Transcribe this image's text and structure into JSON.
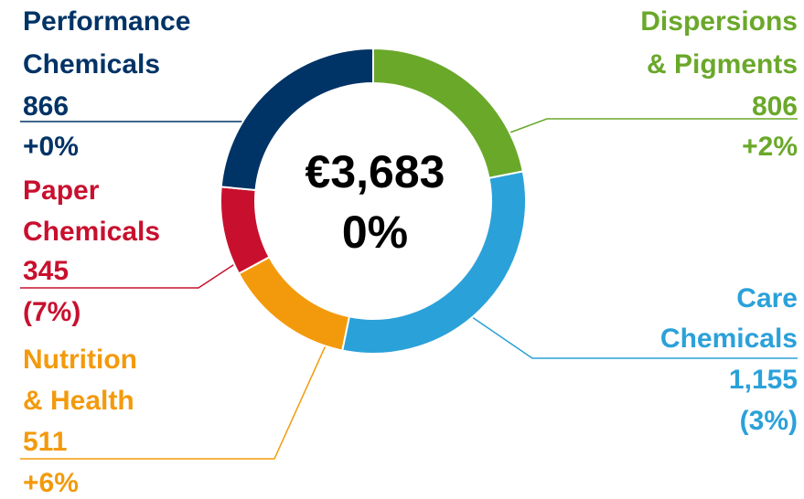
{
  "chart_data": {
    "type": "pie",
    "center_label": "€3,683",
    "center_sublabel": "0%",
    "categories": [
      [
        "Dispersions",
        "& Pigments"
      ],
      [
        "Care",
        "Chemicals"
      ],
      [
        "Nutrition",
        "& Health"
      ],
      [
        "Paper",
        "Chemicals"
      ],
      [
        "Performance",
        "Chemicals"
      ]
    ],
    "values": [
      806,
      1155,
      511,
      345,
      866
    ],
    "value_labels": [
      "806",
      "1,155",
      "511",
      "345",
      "866"
    ],
    "changes": [
      "+2%",
      "(3%)",
      "+6%",
      "(7%)",
      "+0%"
    ],
    "colors": [
      "#6aa82a",
      "#2ba1d9",
      "#f39a0c",
      "#c8102e",
      "#003366"
    ]
  }
}
